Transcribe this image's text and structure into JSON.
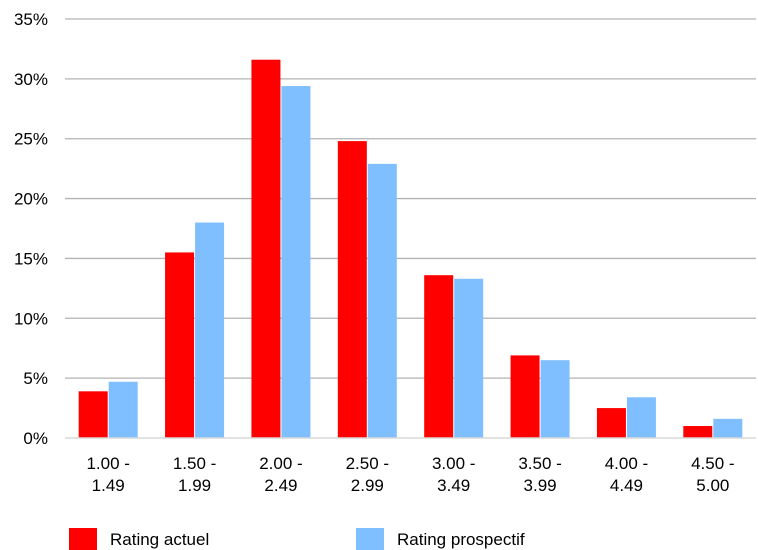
{
  "chart_data": {
    "type": "bar",
    "categories": [
      [
        "1.00 -",
        "1.49"
      ],
      [
        "1.50 -",
        "1.99"
      ],
      [
        "2.00 -",
        "2.49"
      ],
      [
        "2.50 -",
        "2.99"
      ],
      [
        "3.00 -",
        "3.49"
      ],
      [
        "3.50 -",
        "3.99"
      ],
      [
        "4.00 -",
        "4.49"
      ],
      [
        "4.50 -",
        "5.00"
      ]
    ],
    "series": [
      {
        "name": "Rating actuel",
        "color": "#ff0000",
        "values": [
          3.9,
          15.5,
          31.6,
          24.8,
          13.6,
          6.9,
          2.5,
          1.0
        ]
      },
      {
        "name": "Rating prospectif",
        "color": "#80bfff",
        "values": [
          4.7,
          18.0,
          29.4,
          22.9,
          13.3,
          6.5,
          3.4,
          1.6
        ]
      }
    ],
    "ylim": [
      0,
      35
    ],
    "yticks": [
      0,
      5,
      10,
      15,
      20,
      25,
      30,
      35
    ],
    "ytick_format": "percent",
    "grid": true,
    "legend_position": "bottom",
    "title": "",
    "xlabel": "",
    "ylabel": ""
  }
}
